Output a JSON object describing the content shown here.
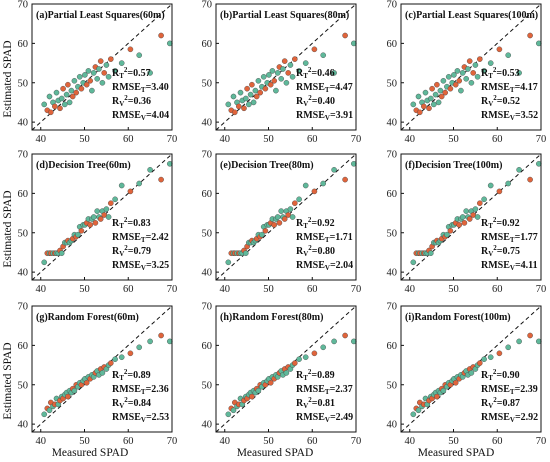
{
  "colors": {
    "train": "#E0643B",
    "validation": "#5FB89A",
    "edge": "#444444",
    "diagonal": "#111111"
  },
  "chart_data": {
    "type": "scatter",
    "layout": {
      "rows": 3,
      "cols": 3
    },
    "xlabel": "Measured SPAD",
    "ylabel": "Estimated SPAD",
    "xlim": [
      38,
      70
    ],
    "ylim": [
      38,
      70
    ],
    "xticks": [
      "40",
      "50",
      "60",
      "70"
    ],
    "yticks": [
      "40",
      "50",
      "60",
      "70"
    ],
    "diagonal": "1:1 dashed",
    "panels": [
      {
        "title": "(a)Partial Least Squares(60m)",
        "method": "pls",
        "stats": {
          "RT2": "0.57",
          "RMSET": "3.40",
          "RV2": "0.36",
          "RMSEV": "4.04"
        }
      },
      {
        "title": "(b)Partial Least Squares(80m)",
        "method": "pls",
        "stats": {
          "RT2": "0.46",
          "RMSET": "4.47",
          "RV2": "0.40",
          "RMSEV": "3.91"
        }
      },
      {
        "title": "(c)Partial Least Squares(100m)",
        "method": "pls",
        "stats": {
          "RT2": "0.53",
          "RMSET": "4.17",
          "RV2": "0.52",
          "RMSEV": "3.52"
        }
      },
      {
        "title": "(d)Decision Tree(60m)",
        "method": "dt",
        "stats": {
          "RT2": "0.83",
          "RMSET": "2.42",
          "RV2": "0.79",
          "RMSEV": "3.25"
        }
      },
      {
        "title": "(e)Decision Tree(80m)",
        "method": "dt",
        "stats": {
          "RT2": "0.92",
          "RMSET": "1.71",
          "RV2": "0.80",
          "RMSEV": "2.04"
        }
      },
      {
        "title": "(f)Decision Tree(100m)",
        "method": "dt",
        "stats": {
          "RT2": "0.92",
          "RMSET": "1.77",
          "RV2": "0.75",
          "RMSEV": "4.11"
        }
      },
      {
        "title": "(g)Random Forest(60m)",
        "method": "rf",
        "stats": {
          "RT2": "0.89",
          "RMSET": "2.36",
          "RV2": "0.84",
          "RMSEV": "2.53"
        }
      },
      {
        "title": "(h)Random Forest(80m)",
        "method": "rf",
        "stats": {
          "RT2": "0.89",
          "RMSET": "2.37",
          "RV2": "0.81",
          "RMSEV": "2.49"
        }
      },
      {
        "title": "(i)Random Forest(100m)",
        "method": "rf",
        "stats": {
          "RT2": "0.90",
          "RMSET": "2.39",
          "RV2": "0.87",
          "RMSEV": "2.92"
        }
      }
    ],
    "measured_spad": [
      40.8,
      41.5,
      42.0,
      42.3,
      42.8,
      43.2,
      43.6,
      44.0,
      44.4,
      44.8,
      45.1,
      45.5,
      45.9,
      46.2,
      46.6,
      47.0,
      47.3,
      47.7,
      48.1,
      48.5,
      48.9,
      49.3,
      49.7,
      50.1,
      50.5,
      50.9,
      51.3,
      51.7,
      52.1,
      52.5,
      52.9,
      53.3,
      53.7,
      54.1,
      54.5,
      55.0,
      55.5,
      56.0,
      57.0,
      58.5,
      60.5,
      62.5,
      65.0,
      67.5,
      69.5
    ],
    "estimated_spad": {
      "pls": [
        44.5,
        43.0,
        46.5,
        42.5,
        45.0,
        44.0,
        47.5,
        45.5,
        43.5,
        46.0,
        48.5,
        44.5,
        47.0,
        49.5,
        45.0,
        48.0,
        46.5,
        50.5,
        47.5,
        49.0,
        51.5,
        48.5,
        50.0,
        52.0,
        49.5,
        53.0,
        50.5,
        48.0,
        52.5,
        54.0,
        51.0,
        53.5,
        55.5,
        50.0,
        52.5,
        54.5,
        51.5,
        56.0,
        53.0,
        55.0,
        58.5,
        57.0,
        52.5,
        62.0,
        60.0
      ],
      "dt": [
        42.5,
        44.8,
        44.8,
        44.8,
        44.8,
        44.8,
        44.8,
        44.8,
        45.5,
        44.8,
        46.5,
        47.5,
        47.5,
        48.0,
        47.5,
        48.0,
        48.5,
        49.5,
        49.0,
        49.5,
        51.5,
        50.5,
        52.0,
        52.0,
        52.5,
        53.5,
        52.0,
        53.5,
        54.0,
        52.5,
        55.5,
        54.0,
        53.5,
        55.5,
        54.5,
        56.0,
        54.0,
        57.5,
        58.5,
        62.0,
        60.5,
        62.5,
        66.0,
        63.5,
        67.5
      ],
      "rf": [
        42.5,
        44.0,
        43.5,
        45.5,
        44.5,
        45.0,
        46.5,
        45.0,
        46.0,
        47.0,
        46.5,
        47.5,
        48.0,
        47.0,
        48.5,
        48.0,
        49.0,
        48.5,
        50.0,
        49.5,
        50.5,
        50.0,
        51.0,
        51.5,
        50.5,
        52.0,
        51.5,
        52.5,
        52.0,
        53.0,
        53.5,
        52.5,
        54.0,
        53.0,
        54.5,
        54.0,
        55.0,
        55.5,
        56.5,
        57.0,
        58.0,
        59.5,
        61.0,
        62.5,
        61.0
      ]
    },
    "group": [
      "V",
      "T",
      "V",
      "T",
      "V",
      "T",
      "V",
      "V",
      "T",
      "V",
      "T",
      "V",
      "V",
      "T",
      "V",
      "V",
      "T",
      "V",
      "T",
      "V",
      "V",
      "T",
      "V",
      "V",
      "T",
      "V",
      "T",
      "V",
      "V",
      "T",
      "V",
      "V",
      "T",
      "V",
      "T",
      "V",
      "V",
      "T",
      "V",
      "V",
      "T",
      "V",
      "V",
      "T",
      "V"
    ]
  }
}
